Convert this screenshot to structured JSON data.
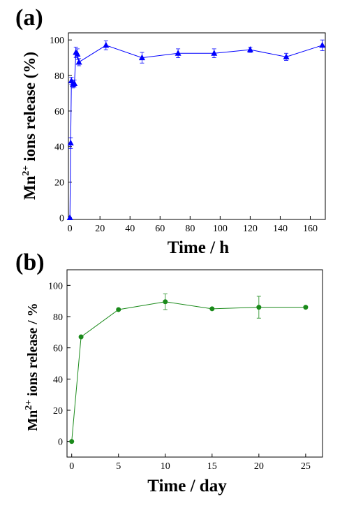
{
  "panels": {
    "a": {
      "label": "(a)",
      "ylabel": {
        "pre": "Mn",
        "sup": "2+",
        "post": " ions release (%)"
      },
      "xlabel": "Time / h"
    },
    "b": {
      "label": "(b)",
      "ylabel": {
        "pre": "Mn",
        "sup": "2+",
        "post": " ions release / %"
      },
      "xlabel": "Time / day"
    }
  },
  "chart_data": [
    {
      "type": "line",
      "panel": "(a)",
      "xlabel": "Time / h",
      "ylabel": "Mn2+ ions release (%)",
      "xlim": [
        -1,
        170
      ],
      "ylim": [
        -1,
        104
      ],
      "xticks": [
        0,
        20,
        40,
        60,
        80,
        100,
        120,
        140,
        160
      ],
      "yticks": [
        0,
        20,
        40,
        60,
        80,
        100
      ],
      "grid": false,
      "color": "#0000ff",
      "marker": "triangle",
      "series": [
        {
          "x": [
            0,
            0.5,
            1,
            2,
            3,
            4,
            5,
            6,
            24,
            48,
            72,
            96,
            120,
            144,
            168
          ],
          "y": [
            0,
            42,
            77,
            75,
            75.5,
            93,
            92,
            87.5,
            97,
            90,
            92.5,
            92.5,
            94.5,
            90.5,
            97
          ],
          "err": [
            0,
            3,
            2,
            2,
            2,
            3,
            3,
            2,
            2.5,
            3,
            2.5,
            2.5,
            1.5,
            2,
            3
          ]
        }
      ]
    },
    {
      "type": "line",
      "panel": "(b)",
      "xlabel": "Time / day",
      "ylabel": "Mn2+ ions release / %",
      "xlim": [
        -0.5,
        26.8
      ],
      "ylim": [
        -10,
        110
      ],
      "xticks": [
        0,
        5,
        10,
        15,
        20,
        25
      ],
      "yticks": [
        0,
        20,
        40,
        60,
        80,
        100
      ],
      "grid": false,
      "color": "#1a8a1a",
      "marker": "circle",
      "series": [
        {
          "x": [
            0,
            1,
            5,
            10,
            15,
            20,
            25
          ],
          "y": [
            0,
            67,
            84.5,
            89.5,
            85,
            86,
            86
          ],
          "err": [
            0,
            0,
            0.5,
            5,
            0.5,
            7,
            0
          ]
        }
      ]
    }
  ]
}
